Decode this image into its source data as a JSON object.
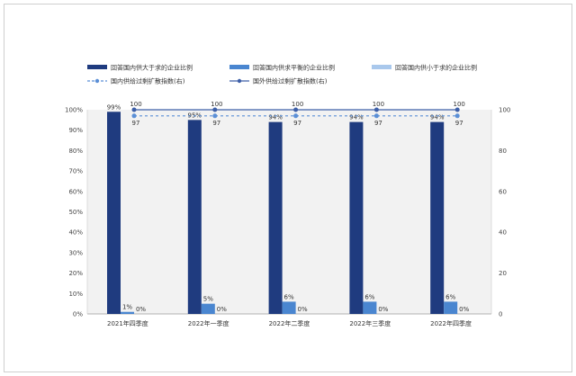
{
  "chart_data": {
    "type": "bar",
    "categories": [
      "2021年四季度",
      "2022年一季度",
      "2022年二季度",
      "2022年三季度",
      "2022年四季度"
    ],
    "series": [
      {
        "name": "回答国内供大于求的企业比例",
        "kind": "bar",
        "axis": "left",
        "color": "#1f3b7f",
        "values": [
          99,
          95,
          94,
          94,
          94
        ],
        "labels": [
          "99%",
          "95%",
          "94%",
          "94%",
          "94%"
        ]
      },
      {
        "name": "回答国内供求平衡的企业比例",
        "kind": "bar",
        "axis": "left",
        "color": "#4a86d0",
        "values": [
          1,
          5,
          6,
          6,
          6
        ],
        "labels": [
          "1%",
          "5%",
          "6%",
          "6%",
          "6%"
        ]
      },
      {
        "name": "回答国内供小于求的企业比例",
        "kind": "bar",
        "axis": "left",
        "color": "#a9c8ec",
        "values": [
          0,
          0,
          0,
          0,
          0
        ],
        "labels": [
          "0%",
          "0%",
          "0%",
          "0%",
          "0%"
        ]
      },
      {
        "name": "国内供给过剩扩散指数(右)",
        "kind": "line",
        "axis": "right",
        "dashed": true,
        "color": "#5b8fd6",
        "values": [
          97,
          97,
          97,
          97,
          97
        ],
        "labels": [
          "97",
          "97",
          "97",
          "97",
          "97"
        ]
      },
      {
        "name": "国外供给过剩扩散指数(右)",
        "kind": "line",
        "axis": "right",
        "dashed": false,
        "color": "#3d5fa8",
        "values": [
          100,
          100,
          100,
          100,
          100
        ],
        "labels": [
          "100",
          "100",
          "100",
          "100",
          "100"
        ]
      }
    ],
    "left_axis": {
      "min": 0,
      "max": 100,
      "ticks": [
        "0%",
        "10%",
        "20%",
        "30%",
        "40%",
        "50%",
        "60%",
        "70%",
        "80%",
        "90%",
        "100%"
      ]
    },
    "right_axis": {
      "min": 0,
      "max": 100,
      "ticks": [
        "0",
        "20",
        "40",
        "60",
        "80",
        "100"
      ]
    },
    "legend_position": "top",
    "plot_background": "#f2f2f2"
  }
}
